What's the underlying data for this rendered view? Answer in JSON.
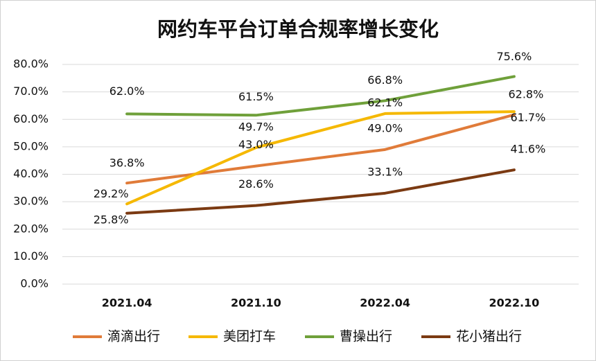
{
  "chart_data": {
    "type": "line",
    "title": "网约车平台订单合规率增长变化",
    "categories": [
      "2021.04",
      "2021.10",
      "2022.04",
      "2022.10"
    ],
    "series": [
      {
        "name": "滴滴出行",
        "color": "#e07b39",
        "values": [
          36.8,
          43.0,
          49.0,
          61.7
        ],
        "value_labels": [
          "36.8%",
          "43.0%",
          "49.0%",
          "61.7%"
        ]
      },
      {
        "name": "美团打车",
        "color": "#f5b800",
        "values": [
          29.2,
          49.7,
          62.1,
          62.8
        ],
        "value_labels": [
          "29.2%",
          "49.7%",
          "62.1%",
          "62.8%"
        ]
      },
      {
        "name": "曹操出行",
        "color": "#6fa03a",
        "values": [
          62.0,
          61.5,
          66.8,
          75.6
        ],
        "value_labels": [
          "62.0%",
          "61.5%",
          "66.8%",
          "75.6%"
        ]
      },
      {
        "name": "花小猪出行",
        "color": "#7b3a12",
        "values": [
          25.8,
          28.6,
          33.1,
          41.6
        ],
        "value_labels": [
          "25.8%",
          "28.6%",
          "33.1%",
          "41.6%"
        ]
      }
    ],
    "ylim": [
      0,
      80
    ],
    "yticks": [
      {
        "value": 0,
        "label": "0.0%"
      },
      {
        "value": 10,
        "label": "10.0%"
      },
      {
        "value": 20,
        "label": "20.0%"
      },
      {
        "value": 30,
        "label": "30.0%"
      },
      {
        "value": 40,
        "label": "40.0%"
      },
      {
        "value": 50,
        "label": "50.0%"
      },
      {
        "value": 60,
        "label": "60.0%"
      },
      {
        "value": 70,
        "label": "70.0%"
      },
      {
        "value": 80,
        "label": "80.0%"
      }
    ],
    "grid": true,
    "legend": "bottom"
  }
}
